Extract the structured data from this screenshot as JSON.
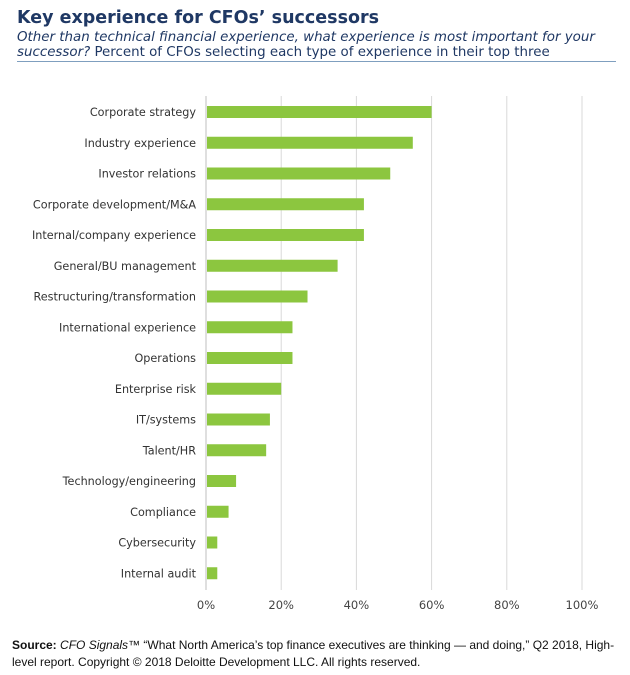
{
  "header": {
    "title": "Key experience for CFOs’ successors",
    "question": "Other than technical financial experience, what experience is most important for your successor?",
    "description": "Percent of CFOs selecting each type of experience in their top three"
  },
  "chart_data": {
    "type": "bar",
    "orientation": "horizontal",
    "title": "",
    "xlabel": "",
    "ylabel": "",
    "xlim": [
      0,
      100
    ],
    "x_ticks": [
      0,
      20,
      40,
      60,
      80,
      100
    ],
    "x_tick_labels": [
      "0%",
      "20%",
      "40%",
      "60%",
      "80%",
      "100%"
    ],
    "grid": "vertical",
    "bar_color": "#8cc63f",
    "categories": [
      "Corporate strategy",
      "Industry experience",
      "Investor relations",
      "Corporate development/M&A",
      "Internal/company experience",
      "General/BU management",
      "Restructuring/transformation",
      "International experience",
      "Operations",
      "Enterprise risk",
      "IT/systems",
      "Talent/HR",
      "Technology/engineering",
      "Compliance",
      "Cybersecurity",
      "Internal audit"
    ],
    "values": [
      60,
      55,
      49,
      42,
      42,
      35,
      27,
      23,
      23,
      20,
      17,
      16,
      8,
      6,
      3,
      3
    ]
  },
  "footer": {
    "source_label": "Source:",
    "source_title": "CFO Signals",
    "source_tm": "™",
    "source_text": " “What North America’s top finance executives are thinking — and doing,” Q2 2018, High-level report. Copyright © 2018 Deloitte Development LLC. All rights reserved."
  }
}
